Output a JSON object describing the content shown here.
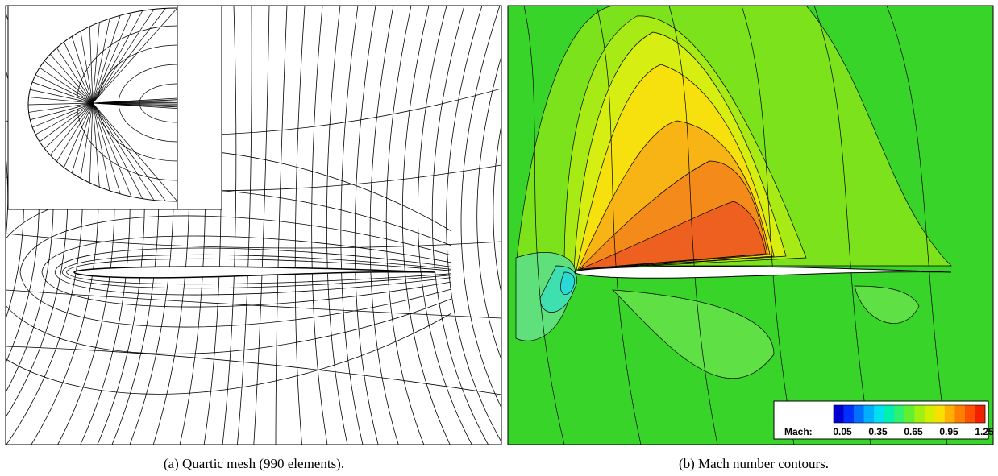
{
  "panels": [
    {
      "caption": "(a) Quartic mesh (990 elements)."
    },
    {
      "caption": "(b) Mach number contours.",
      "legend": {
        "label": "Mach:",
        "ticks": [
          "0.05",
          "0.35",
          "0.65",
          "0.95",
          "1.25"
        ]
      }
    }
  ]
}
